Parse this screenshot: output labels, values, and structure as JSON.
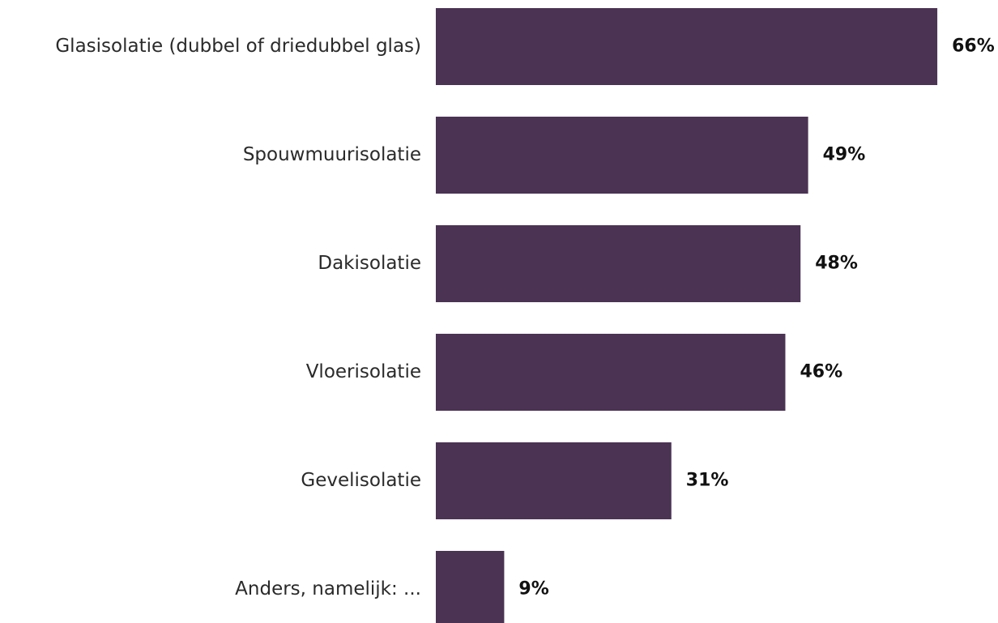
{
  "chart_data": {
    "type": "bar",
    "orientation": "horizontal",
    "categories": [
      "Glasisolatie (dubbel of driedubbel glas)",
      "Spouwmuurisolatie",
      "Dakisolatie",
      "Vloerisolatie",
      "Gevelisolatie",
      "Anders, namelijk: ..."
    ],
    "values": [
      66,
      49,
      48,
      46,
      31,
      9
    ],
    "value_labels": [
      "66%",
      "49%",
      "48%",
      "46%",
      "31%",
      "9%"
    ],
    "color": "#4b3354"
  }
}
